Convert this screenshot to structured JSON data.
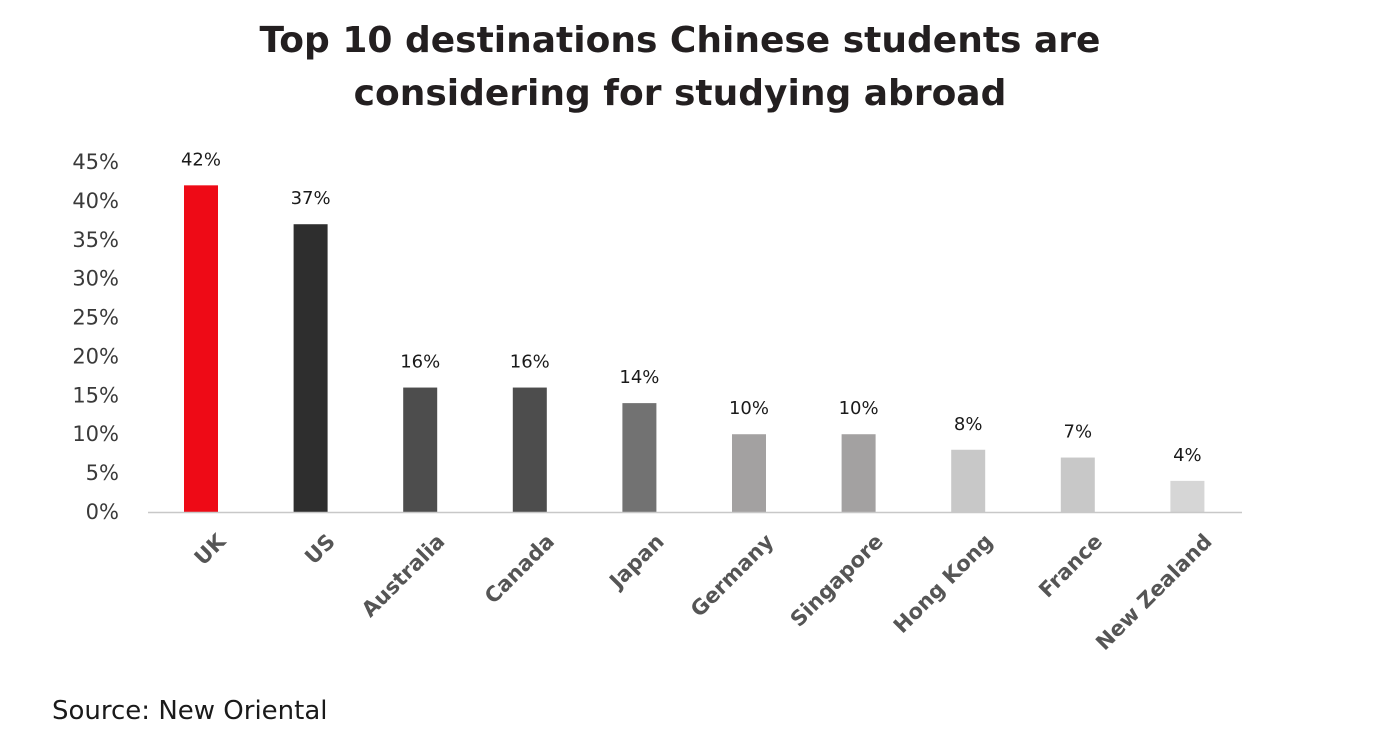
{
  "chart_data": {
    "type": "bar",
    "title_lines": [
      "Top 10 destinations Chinese students are",
      "considering for studying abroad"
    ],
    "categories": [
      "UK",
      "US",
      "Australia",
      "Canada",
      "Japan",
      "Germany",
      "Singapore",
      "Hong Kong",
      "France",
      "New Zealand"
    ],
    "values": [
      42,
      37,
      16,
      16,
      14,
      10,
      10,
      8,
      7,
      4
    ],
    "value_labels": [
      "42%",
      "37%",
      "16%",
      "16%",
      "14%",
      "10%",
      "10%",
      "8%",
      "7%",
      "4%"
    ],
    "bar_colors": [
      "#ee0a16",
      "#2e2e2e",
      "#4d4d4d",
      "#4d4d4d",
      "#727272",
      "#a3a1a1",
      "#a3a1a1",
      "#c8c8c8",
      "#c8c8c8",
      "#d6d6d6"
    ],
    "ylim": [
      0,
      45
    ],
    "yticks": [
      0,
      5,
      10,
      15,
      20,
      25,
      30,
      35,
      40,
      45
    ],
    "ytick_labels": [
      "0%",
      "5%",
      "10%",
      "15%",
      "20%",
      "25%",
      "30%",
      "35%",
      "40%",
      "45%"
    ],
    "grid": false,
    "legend": "none",
    "xlabel": "",
    "ylabel": ""
  },
  "source": "Source: New Oriental",
  "colors": {
    "accent": "#ee0a16",
    "axis_line": "#c8c8c8",
    "title": "#231f20"
  }
}
